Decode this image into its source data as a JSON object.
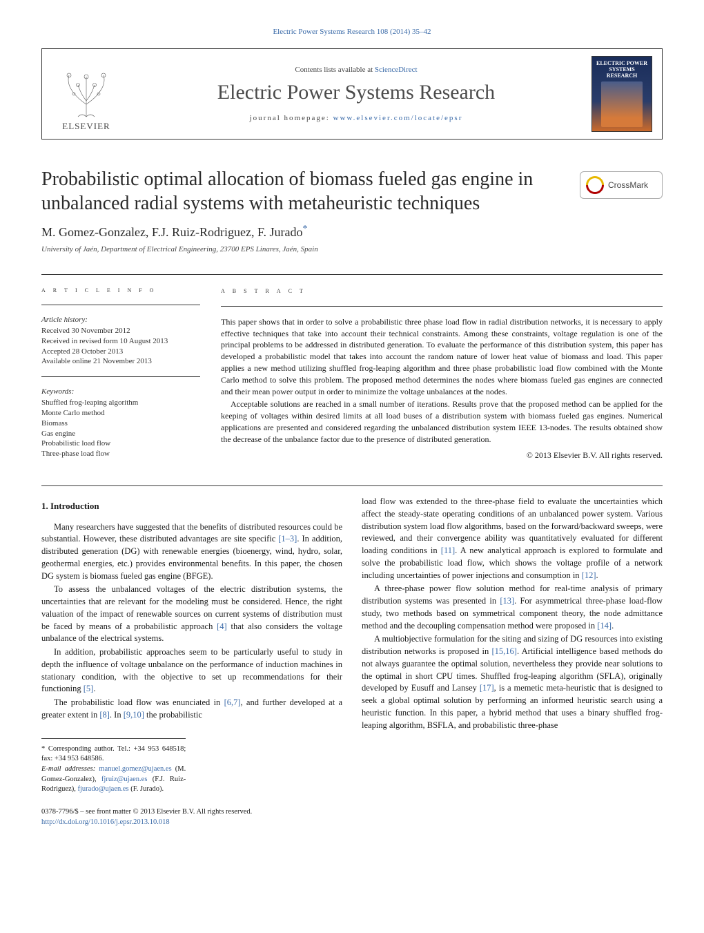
{
  "top_link": "Electric Power Systems Research 108 (2014) 35–42",
  "masthead": {
    "publisher": "ELSEVIER",
    "contents_prefix": "Contents lists available at ",
    "contents_link": "ScienceDirect",
    "journal_name": "Electric Power Systems Research",
    "homepage_prefix": "journal homepage: ",
    "homepage_link": "www.elsevier.com/locate/epsr",
    "cover_title": "ELECTRIC POWER SYSTEMS RESEARCH"
  },
  "crossmark_label": "CrossMark",
  "title": "Probabilistic optimal allocation of biomass fueled gas engine in unbalanced radial systems with metaheuristic techniques",
  "authors": "M. Gomez-Gonzalez, F.J. Ruiz-Rodriguez, F. Jurado",
  "corr_symbol": "*",
  "affiliation": "University of Jaén, Department of Electrical Engineering, 23700 EPS Linares, Jaén, Spain",
  "article_info": {
    "head": "a r t i c l e   i n f o",
    "history_label": "Article history:",
    "history": [
      "Received 30 November 2012",
      "Received in revised form 10 August 2013",
      "Accepted 28 October 2013",
      "Available online 21 November 2013"
    ],
    "keywords_label": "Keywords:",
    "keywords": [
      "Shuffled frog-leaping algorithm",
      "Monte Carlo method",
      "Biomass",
      "Gas engine",
      "Probabilistic load flow",
      "Three-phase load flow"
    ]
  },
  "abstract": {
    "head": "a b s t r a c t",
    "p1": "This paper shows that in order to solve a probabilistic three phase load flow in radial distribution networks, it is necessary to apply effective techniques that take into account their technical constraints. Among these constraints, voltage regulation is one of the principal problems to be addressed in distributed generation. To evaluate the performance of this distribution system, this paper has developed a probabilistic model that takes into account the random nature of lower heat value of biomass and load. This paper applies a new method utilizing shuffled frog-leaping algorithm and three phase probabilistic load flow combined with the Monte Carlo method to solve this problem. The proposed method determines the nodes where biomass fueled gas engines are connected and their mean power output in order to minimize the voltage unbalances at the nodes.",
    "p2": "Acceptable solutions are reached in a small number of iterations. Results prove that the proposed method can be applied for the keeping of voltages within desired limits at all load buses of a distribution system with biomass fueled gas engines. Numerical applications are presented and considered regarding the unbalanced distribution system IEEE 13-nodes. The results obtained show the decrease of the unbalance factor due to the presence of distributed generation.",
    "copyright": "© 2013 Elsevier B.V. All rights reserved."
  },
  "section1": {
    "heading": "1.  Introduction",
    "left": [
      "Many researchers have suggested that the benefits of distributed resources could be substantial. However, these distributed advantages are site specific [1–3]. In addition, distributed generation (DG) with renewable energies (bioenergy, wind, hydro, solar, geothermal energies, etc.) provides environmental benefits. In this paper, the chosen DG system is biomass fueled gas engine (BFGE).",
      "To assess the unbalanced voltages of the electric distribution systems, the uncertainties that are relevant for the modeling must be considered. Hence, the right valuation of the impact of renewable sources on current systems of distribution must be faced by means of a probabilistic approach [4] that also considers the voltage unbalance of the electrical systems.",
      "In addition, probabilistic approaches seem to be particularly useful to study in depth the influence of voltage unbalance on the performance of induction machines in stationary condition, with the objective to set up recommendations for their functioning [5].",
      "The probabilistic load flow was enunciated in [6,7], and further developed at a greater extent in [8]. In [9,10] the probabilistic"
    ],
    "right": [
      "load flow was extended to the three-phase field to evaluate the uncertainties which affect the steady-state operating conditions of an unbalanced power system. Various distribution system load flow algorithms, based on the forward/backward sweeps, were reviewed, and their convergence ability was quantitatively evaluated for different loading conditions in [11]. A new analytical approach is explored to formulate and solve the probabilistic load flow, which shows the voltage profile of a network including uncertainties of power injections and consumption in [12].",
      "A three-phase power flow solution method for real-time analysis of primary distribution systems was presented in [13]. For asymmetrical three-phase load-flow study, two methods based on symmetrical component theory, the node admittance method and the decoupling compensation method were proposed in [14].",
      "A multiobjective formulation for the siting and sizing of DG resources into existing distribution networks is proposed in [15,16]. Artificial intelligence based methods do not always guarantee the optimal solution, nevertheless they provide near solutions to the optimal in short CPU times. Shuffled frog-leaping algorithm (SFLA), originally developed by Eusuff and Lansey [17], is a memetic meta-heuristic that is designed to seek a global optimal solution by performing an informed heuristic search using a heuristic function. In this paper, a hybrid method that uses a binary shuffled frog-leaping algorithm, BSFLA, and probabilistic three-phase"
    ]
  },
  "footnotes": {
    "corr": "* Corresponding author. Tel.: +34 953 648518; fax: +34 953 648586.",
    "emails_label": "E-mail addresses: ",
    "email1": "manuel.gomez@ujaen.es",
    "name1": " (M. Gomez-Gonzalez), ",
    "email2": "fjruiz@ujaen.es",
    "name2": " (F.J. Ruiz-Rodriguez), ",
    "email3": "fjurado@ujaen.es",
    "name3": " (F. Jurado)."
  },
  "bottom": {
    "line1": "0378-7796/$ – see front matter © 2013 Elsevier B.V. All rights reserved.",
    "doi": "http://dx.doi.org/10.1016/j.epsr.2013.10.018"
  },
  "colors": {
    "link": "#3a6aa8",
    "text": "#1a1a1a",
    "rule": "#333333"
  }
}
